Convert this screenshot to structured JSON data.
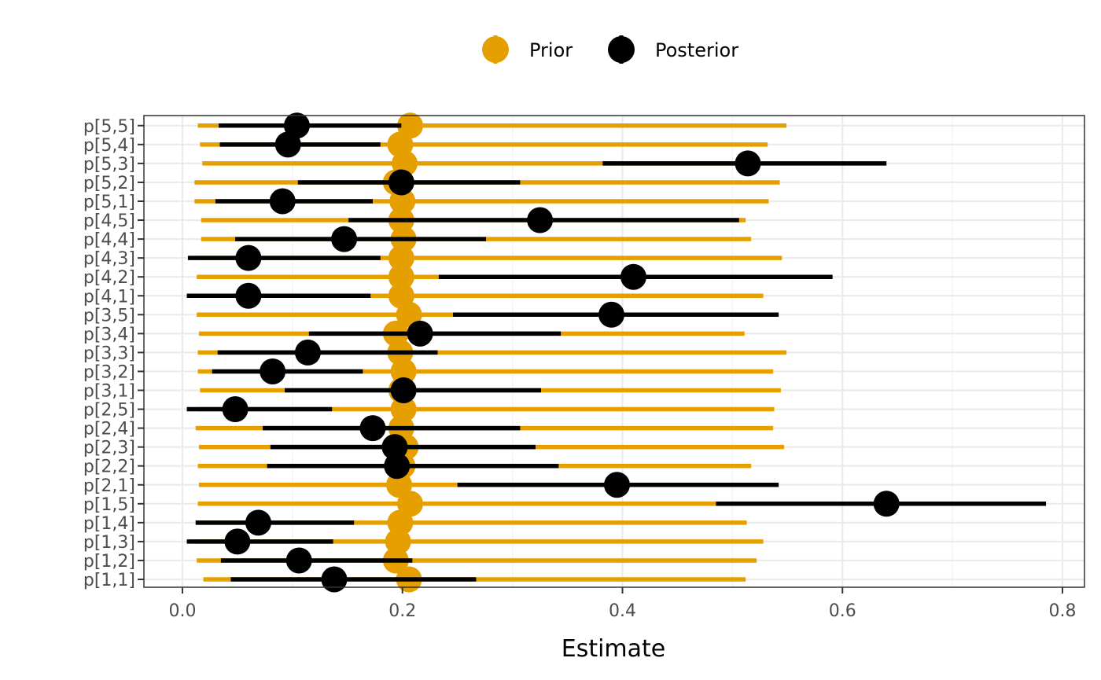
{
  "chart_data": {
    "type": "pointrange",
    "xlabel": "Estimate",
    "ylabel": "",
    "xlim": [
      -0.035,
      0.82
    ],
    "xticks": [
      0.0,
      0.2,
      0.4,
      0.6,
      0.8
    ],
    "xtick_labels": [
      "0.0",
      "0.2",
      "0.4",
      "0.6",
      "0.8"
    ],
    "grid": true,
    "legend_position": "top",
    "categories": [
      "p[1,1]",
      "p[1,2]",
      "p[1,3]",
      "p[1,4]",
      "p[1,5]",
      "p[2,1]",
      "p[2,2]",
      "p[2,3]",
      "p[2,4]",
      "p[2,5]",
      "p[3,1]",
      "p[3,2]",
      "p[3,3]",
      "p[3,4]",
      "p[3,5]",
      "p[4,1]",
      "p[4,2]",
      "p[4,3]",
      "p[4,4]",
      "p[4,5]",
      "p[5,1]",
      "p[5,2]",
      "p[5,3]",
      "p[5,4]",
      "p[5,5]"
    ],
    "series": [
      {
        "name": "Prior",
        "color": "#E69F00",
        "estimate": [
          0.206,
          0.194,
          0.196,
          0.198,
          0.207,
          0.197,
          0.2,
          0.203,
          0.199,
          0.201,
          0.199,
          0.201,
          0.198,
          0.194,
          0.206,
          0.199,
          0.199,
          0.199,
          0.201,
          0.199,
          0.2,
          0.194,
          0.202,
          0.198,
          0.207
        ],
        "lower": [
          0.019,
          0.013,
          0.011,
          0.013,
          0.014,
          0.015,
          0.014,
          0.015,
          0.012,
          0.015,
          0.016,
          0.014,
          0.014,
          0.015,
          0.013,
          0.012,
          0.013,
          0.012,
          0.017,
          0.017,
          0.011,
          0.011,
          0.018,
          0.016,
          0.014
        ],
        "upper": [
          0.512,
          0.522,
          0.528,
          0.513,
          0.524,
          0.519,
          0.517,
          0.547,
          0.537,
          0.538,
          0.544,
          0.537,
          0.549,
          0.511,
          0.536,
          0.528,
          0.545,
          0.545,
          0.517,
          0.512,
          0.533,
          0.543,
          0.517,
          0.532,
          0.549
        ]
      },
      {
        "name": "Posterior",
        "color": "#000000",
        "estimate": [
          0.138,
          0.106,
          0.05,
          0.069,
          0.64,
          0.395,
          0.195,
          0.193,
          0.173,
          0.048,
          0.201,
          0.082,
          0.114,
          0.216,
          0.39,
          0.06,
          0.41,
          0.06,
          0.147,
          0.325,
          0.091,
          0.199,
          0.514,
          0.096,
          0.104
        ],
        "lower": [
          0.044,
          0.035,
          0.004,
          0.012,
          0.485,
          0.25,
          0.077,
          0.08,
          0.073,
          0.004,
          0.093,
          0.027,
          0.032,
          0.115,
          0.246,
          0.004,
          0.233,
          0.005,
          0.048,
          0.151,
          0.03,
          0.105,
          0.382,
          0.034,
          0.033
        ],
        "upper": [
          0.267,
          0.209,
          0.137,
          0.156,
          0.785,
          0.542,
          0.342,
          0.321,
          0.307,
          0.136,
          0.326,
          0.164,
          0.232,
          0.344,
          0.542,
          0.171,
          0.591,
          0.18,
          0.276,
          0.506,
          0.173,
          0.307,
          0.64,
          0.18,
          0.199
        ]
      }
    ]
  }
}
